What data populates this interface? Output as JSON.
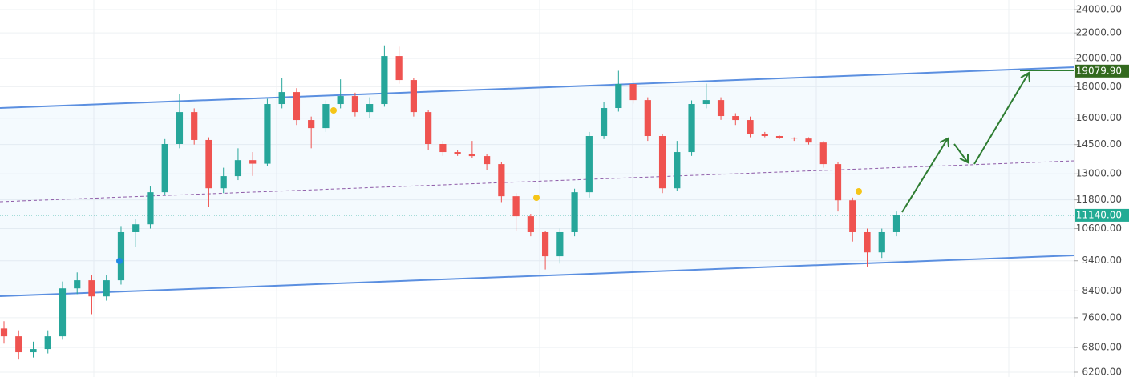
{
  "chart_data": {
    "type": "candlestick",
    "log_scale": true,
    "grid": true,
    "up_color": "#26a69a",
    "down_color": "#ef5350",
    "ylim": [
      6090,
      24880
    ],
    "yticks": [
      {
        "value": 24000,
        "label": "24000.00"
      },
      {
        "value": 22000,
        "label": "22000.00"
      },
      {
        "value": 20000,
        "label": "20000.00"
      },
      {
        "value": 18000,
        "label": "18000.00"
      },
      {
        "value": 16000,
        "label": "16000.00"
      },
      {
        "value": 14500,
        "label": "14500.00"
      },
      {
        "value": 13000,
        "label": "13000.00"
      },
      {
        "value": 11800,
        "label": "11800.00"
      },
      {
        "value": 10600,
        "label": "10600.00"
      },
      {
        "value": 9400,
        "label": "9400.00"
      },
      {
        "value": 8400,
        "label": "8400.00"
      },
      {
        "value": 7600,
        "label": "7600.00"
      },
      {
        "value": 6800,
        "label": "6800.00"
      },
      {
        "value": 6200,
        "label": "6200.00"
      }
    ],
    "price_labels": [
      {
        "value": 19079.9,
        "label": "19079.90",
        "color": "#33691e"
      },
      {
        "value": 11140,
        "label": "11140.00",
        "color": "#22ab94"
      }
    ],
    "candles": [
      [
        7300,
        7500,
        6900,
        7090
      ],
      [
        7090,
        7250,
        6500,
        6680
      ],
      [
        6680,
        6950,
        6550,
        6760
      ],
      [
        6760,
        7250,
        6650,
        7090
      ],
      [
        7090,
        8700,
        7000,
        8480
      ],
      [
        8480,
        9000,
        8300,
        8740
      ],
      [
        8740,
        8900,
        7700,
        8230
      ],
      [
        8230,
        8900,
        8100,
        8740
      ],
      [
        8740,
        10700,
        8600,
        10460
      ],
      [
        10460,
        11000,
        9900,
        10770
      ],
      [
        10770,
        12400,
        10600,
        12140
      ],
      [
        12140,
        14800,
        12000,
        14530
      ],
      [
        14530,
        17500,
        14300,
        16370
      ],
      [
        16370,
        16600,
        14500,
        14750
      ],
      [
        14750,
        14900,
        11500,
        12320
      ],
      [
        12320,
        13300,
        12100,
        12890
      ],
      [
        12890,
        14300,
        12700,
        13680
      ],
      [
        13680,
        14100,
        12900,
        13500
      ],
      [
        13500,
        17200,
        13400,
        16870
      ],
      [
        16870,
        18600,
        16600,
        17640
      ],
      [
        17640,
        17900,
        15600,
        15890
      ],
      [
        15890,
        16100,
        14300,
        15420
      ],
      [
        15420,
        17100,
        15200,
        16870
      ],
      [
        16870,
        18500,
        16600,
        17380
      ],
      [
        17380,
        17600,
        16100,
        16370
      ],
      [
        16370,
        17300,
        16000,
        16870
      ],
      [
        16870,
        21000,
        16700,
        20180
      ],
      [
        20180,
        20900,
        18200,
        18450
      ],
      [
        18450,
        18600,
        16100,
        16370
      ],
      [
        16370,
        16500,
        14200,
        14530
      ],
      [
        14530,
        14700,
        13900,
        14100
      ],
      [
        14100,
        14200,
        13900,
        14010
      ],
      [
        14010,
        14700,
        13800,
        13890
      ],
      [
        13890,
        14000,
        13200,
        13480
      ],
      [
        13480,
        13600,
        11700,
        11960
      ],
      [
        11960,
        12100,
        10500,
        11100
      ],
      [
        11100,
        11200,
        10300,
        10460
      ],
      [
        10460,
        10500,
        9100,
        9560
      ],
      [
        9560,
        10600,
        9300,
        10460
      ],
      [
        10460,
        12300,
        10300,
        12140
      ],
      [
        12140,
        15200,
        11900,
        14970
      ],
      [
        14970,
        17000,
        14800,
        16620
      ],
      [
        16620,
        19100,
        16400,
        18180
      ],
      [
        18180,
        18400,
        16900,
        17120
      ],
      [
        17120,
        17300,
        14700,
        14970
      ],
      [
        14970,
        15100,
        12100,
        12320
      ],
      [
        12320,
        14700,
        12200,
        14100
      ],
      [
        14100,
        17100,
        13900,
        16870
      ],
      [
        16870,
        18200,
        16600,
        17120
      ],
      [
        17120,
        17300,
        15900,
        16130
      ],
      [
        16130,
        16300,
        15600,
        15890
      ],
      [
        15890,
        16100,
        14900,
        15060
      ],
      [
        15060,
        15200,
        14900,
        14970
      ],
      [
        14970,
        15000,
        14800,
        14880
      ],
      [
        14880,
        14900,
        14700,
        14830
      ],
      [
        14830,
        14900,
        14500,
        14610
      ],
      [
        14610,
        14700,
        13300,
        13480
      ],
      [
        13480,
        13600,
        11300,
        11780
      ],
      [
        11780,
        11900,
        10100,
        10460
      ],
      [
        10460,
        10600,
        9200,
        9700
      ],
      [
        9700,
        10600,
        9500,
        10460
      ],
      [
        10460,
        11300,
        10300,
        11170
      ]
    ]
  }
}
